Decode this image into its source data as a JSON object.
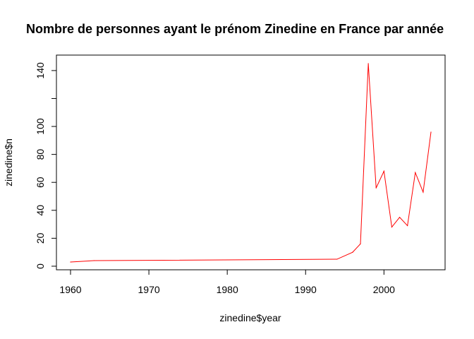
{
  "chart_data": {
    "type": "line",
    "title": "Nombre de personnes ayant le prénom Zinedine en France par année",
    "xlabel": "zinedine$year",
    "ylabel": "zinedine$n",
    "xlim": [
      1960,
      2006
    ],
    "ylim": [
      3,
      145
    ],
    "x_ticks": [
      1960,
      1970,
      1980,
      1990,
      2000
    ],
    "y_ticks": [
      0,
      20,
      40,
      60,
      80,
      100,
      120,
      140
    ],
    "y_tick_labels": [
      "0",
      "20",
      "40",
      "60",
      "80",
      "100",
      "",
      "140"
    ],
    "grid": false,
    "series": [
      {
        "color": "#ff0000",
        "x": [
          1960,
          1963,
          1994,
          1996,
          1997,
          1998,
          1999,
          2000,
          2001,
          2002,
          2003,
          2004,
          2005,
          2006
        ],
        "y": [
          3,
          4,
          5,
          10,
          16,
          145,
          56,
          68,
          28,
          35,
          29,
          67,
          53,
          96
        ]
      }
    ]
  }
}
